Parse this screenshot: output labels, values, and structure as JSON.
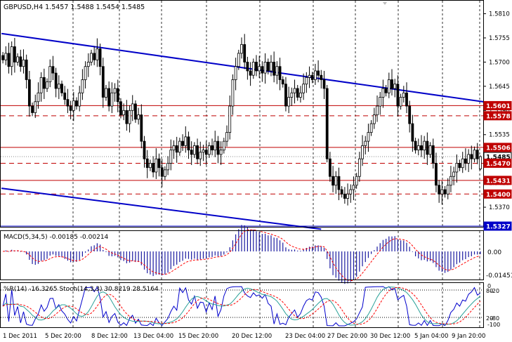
{
  "header": {
    "symbol_line": "GBPUSD,H4  1.5457 1.5488 1.5454 1.5485"
  },
  "colors": {
    "background": "#ffffff",
    "frame": "#000000",
    "candle": "#000000",
    "grid": "#000000",
    "trendline": "#0000c8",
    "support_resistance": "#c00000",
    "current_price_label_bg": "#ffffff",
    "macd_histogram": "#1a1aa0",
    "macd_signal": "#ff0000",
    "wpr_line": "#0000cc",
    "stoch_main": "#2aa198",
    "stoch_signal": "#ff0000",
    "blue_label_bg": "#0000c8"
  },
  "price_axis": {
    "ticks": [
      "1.5810",
      "1.5755",
      "1.5700",
      "1.5645",
      "1.5590",
      "1.5535",
      "1.5480",
      "1.5425",
      "1.5370"
    ]
  },
  "price_labels": [
    {
      "text": "1.5601",
      "kind": "red"
    },
    {
      "text": "1.5578",
      "kind": "red"
    },
    {
      "text": "1.5506",
      "kind": "red"
    },
    {
      "text": "1.5485",
      "kind": "current"
    },
    {
      "text": "1.5470",
      "kind": "red"
    },
    {
      "text": "1.5431",
      "kind": "red"
    },
    {
      "text": "1.5400",
      "kind": "red"
    },
    {
      "text": "1.5327",
      "kind": "blue"
    }
  ],
  "time_axis": {
    "labels": [
      "1 Dec 2011",
      "5 Dec 20:00",
      "8 Dec 12:00",
      "13 Dec 04:00",
      "15 Dec 20:00",
      "20 Dec 12:00",
      "23 Dec 04:00",
      "27 Dec 20:00",
      "30 Dec 12:00",
      "5 Jan 04:00",
      "9 Jan 20:00"
    ]
  },
  "macd_panel": {
    "title": "MACD(5,34,5) -0.00185 -0.00214",
    "ticks": [
      "0.00",
      "-0.01451"
    ]
  },
  "stoch_panel": {
    "title": "%R(14) -16.3265  Stoch(14,3,3) 30.8219 28.5164",
    "ticks": [
      "0",
      "-20",
      "80",
      "20",
      "-80",
      "-100"
    ]
  },
  "chart_data": {
    "type": "candlestick",
    "symbol": "GBPUSD",
    "timeframe": "H4",
    "last_bar": {
      "open": 1.5457,
      "high": 1.5488,
      "low": 1.5454,
      "close": 1.5485
    },
    "ylim": [
      1.5327,
      1.5838
    ],
    "horizontal_levels": [
      1.5601,
      1.5578,
      1.5506,
      1.547,
      1.5431,
      1.54,
      1.5327
    ],
    "dashed_levels": [
      1.5578,
      1.547,
      1.54
    ],
    "trend_channel": [
      {
        "from": {
          "bar": 0,
          "price": 1.5765
        },
        "to": {
          "bar": 168,
          "price": 1.5605
        }
      },
      {
        "from": {
          "bar": 0,
          "price": 1.5413
        },
        "to": {
          "bar": 108,
          "price": 1.532
        }
      }
    ],
    "closes": [
      1.5705,
      1.572,
      1.569,
      1.5735,
      1.57,
      1.5712,
      1.569,
      1.5705,
      1.566,
      1.56,
      1.5585,
      1.561,
      1.563,
      1.5665,
      1.564,
      1.5655,
      1.569,
      1.5675,
      1.564,
      1.565,
      1.563,
      1.5615,
      1.56,
      1.559,
      1.5612,
      1.56,
      1.563,
      1.566,
      1.569,
      1.57,
      1.572,
      1.5705,
      1.573,
      1.569,
      1.562,
      1.564,
      1.56,
      1.563,
      1.564,
      1.561,
      1.558,
      1.559,
      1.556,
      1.559,
      1.5605,
      1.557,
      1.558,
      1.552,
      1.548,
      1.546,
      1.547,
      1.545,
      1.548,
      1.546,
      1.544,
      1.5455,
      1.547,
      1.55,
      1.551,
      1.5495,
      1.552,
      1.551,
      1.553,
      1.55,
      1.549,
      1.551,
      1.548,
      1.5495,
      1.55,
      1.549,
      1.551,
      1.55,
      1.552,
      1.549,
      1.55,
      1.552,
      1.554,
      1.56,
      1.566,
      1.569,
      1.572,
      1.574,
      1.57,
      1.568,
      1.567,
      1.57,
      1.568,
      1.569,
      1.5675,
      1.57,
      1.568,
      1.57,
      1.567,
      1.569,
      1.566,
      1.565,
      1.56,
      1.562,
      1.563,
      1.564,
      1.562,
      1.563,
      1.565,
      1.5665,
      1.567,
      1.566,
      1.568,
      1.567,
      1.566,
      1.564,
      1.548,
      1.544,
      1.542,
      1.544,
      1.541,
      1.54,
      1.539,
      1.54,
      1.541,
      1.542,
      1.544,
      1.548,
      1.551,
      1.552,
      1.554,
      1.556,
      1.558,
      1.56,
      1.562,
      1.564,
      1.563,
      1.566,
      1.564,
      1.565,
      1.56,
      1.562,
      1.563,
      1.56,
      1.556,
      1.552,
      1.55,
      1.551,
      1.55,
      1.552,
      1.549,
      1.551,
      1.547,
      1.542,
      1.54,
      1.541,
      1.54,
      1.542,
      1.544,
      1.545,
      1.547,
      1.546,
      1.548,
      1.547,
      1.549,
      1.548,
      1.55,
      1.548,
      1.5485
    ],
    "indicators": {
      "macd": {
        "params": "5,34,5",
        "value": -0.00185,
        "signal": -0.00214
      },
      "williams_r": {
        "period": 14,
        "value": -16.3265
      },
      "stochastic": {
        "params": "14,3,3",
        "main": 30.8219,
        "signal": 28.5164
      }
    }
  }
}
